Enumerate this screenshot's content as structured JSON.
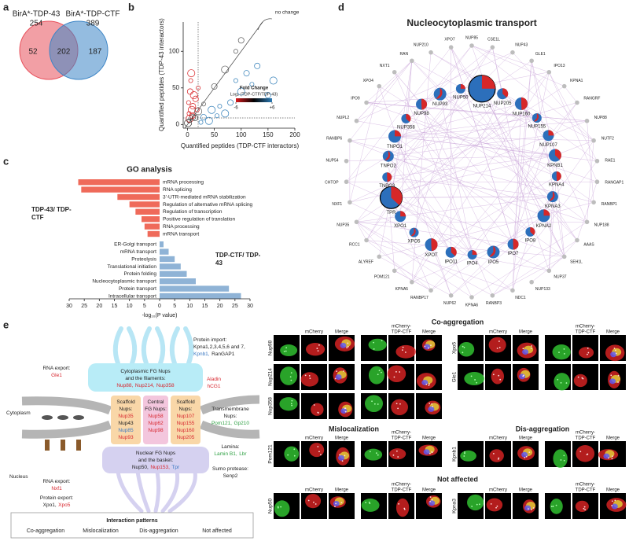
{
  "panel_labels": [
    "a",
    "b",
    "c",
    "d",
    "e"
  ],
  "venn": {
    "sets": [
      {
        "label": "BirA*-TDP-43",
        "total": 254,
        "color": "#e8505b"
      },
      {
        "label": "BirA*-TDP-CTF",
        "total": 389,
        "color": "#3d85c6"
      }
    ],
    "regions": [
      52,
      202,
      187
    ]
  },
  "chart_data": [
    {
      "type": "scatter",
      "x": [
        2,
        5,
        8,
        3,
        10,
        12,
        6,
        15,
        4,
        20,
        9,
        7,
        18,
        30,
        45,
        60,
        80,
        100,
        120,
        150,
        70,
        90,
        110,
        40,
        55,
        130,
        160,
        25,
        10,
        20,
        30,
        50,
        70,
        90,
        100,
        1,
        3,
        14
      ],
      "y": [
        30,
        45,
        20,
        15,
        25,
        40,
        60,
        35,
        8,
        50,
        12,
        70,
        20,
        10,
        20,
        25,
        30,
        45,
        55,
        40,
        15,
        60,
        70,
        5,
        12,
        80,
        60,
        3,
        10,
        18,
        28,
        52,
        75,
        100,
        115,
        2,
        5,
        9
      ],
      "colors": [
        "#d7191c",
        "#d7191c",
        "#d7191c",
        "#d7191c",
        "#d7191c",
        "#d7191c",
        "#d7191c",
        "#d7191c",
        "#d7191c",
        "#d7191c",
        "#d7191c",
        "#d7191c",
        "#d7191c",
        "#2c7bb6",
        "#2c7bb6",
        "#2c7bb6",
        "#2c7bb6",
        "#2c7bb6",
        "#2c7bb6",
        "#2c7bb6",
        "#2c7bb6",
        "#2c7bb6",
        "#2c7bb6",
        "#2c7bb6",
        "#2c7bb6",
        "#2c7bb6",
        "#2c7bb6",
        "#2c7bb6",
        "#555555",
        "#555555",
        "#555555",
        "#555555",
        "#555555",
        "#555555",
        "#555555",
        "#333333",
        "#333333",
        "#333333"
      ],
      "xlabel": "Quantified peptides (TDP-CTF interactors)",
      "ylabel": "Quantified peptides (TDP-43 interactors)",
      "xlim": [
        -8,
        200
      ],
      "ylim": [
        -5,
        140
      ],
      "xticks": [
        0,
        50,
        100,
        150,
        200
      ],
      "yticks": [
        0,
        50,
        100
      ],
      "annotation": "no change",
      "legend": {
        "title": "Fold Change",
        "subtitle": "Log₂ (TDP-CTF/TDP-43)",
        "range": [
          -6,
          {
            "value": 6,
            "label": "+6"
          }
        ],
        "colors": [
          "#d7191c",
          "#000000",
          "#2c7bb6"
        ]
      }
    },
    {
      "type": "bar",
      "orientation": "horizontal",
      "title": "GO analysis",
      "xlabel": "-log₁₀(P value)",
      "xlim": [
        -30,
        30
      ],
      "xticks": [
        {
          "value": -30,
          "label": "30"
        },
        {
          "value": -25,
          "label": "25"
        },
        {
          "value": -20,
          "label": "20"
        },
        {
          "value": -15,
          "label": "15"
        },
        {
          "value": -10,
          "label": "10"
        },
        {
          "value": -5,
          "label": "5"
        },
        0,
        5,
        10,
        15,
        20,
        25,
        30
      ],
      "series": [
        {
          "name": "TDP-43/ TDP-CTF",
          "color": "#ef6a5a",
          "direction": "left",
          "categories": [
            "mRNA processing",
            "RNA splicing",
            "3'-UTR-mediated mRNA stabilization",
            "Regulation of alternative mRNA splicing",
            "Regulation of transcription",
            "Positive regulation of translation",
            "RNA processing",
            "mRNA transport"
          ],
          "values": [
            27,
            26,
            14,
            10,
            8,
            6,
            5,
            4
          ]
        },
        {
          "name": "TDP-CTF/ TDP-43",
          "color": "#8fb3d6",
          "direction": "right",
          "categories": [
            "ER-Golgi transport",
            "mRNA transport",
            "Proteolysis",
            "Translational initiation",
            "Protein folding",
            "Nucleocytoplasmic transport",
            "Protein transport",
            "Intracellular transport"
          ],
          "values": [
            1.3,
            3,
            5,
            7,
            9,
            12,
            23,
            27
          ]
        }
      ]
    }
  ],
  "network": {
    "title": "Nucleocytoplasmic transport",
    "outer_nodes": [
      "NUP85",
      "CSE1L",
      "NUP43",
      "GLE1",
      "IPO13",
      "KPNA1",
      "RANGRF",
      "NUP88",
      "NUTF2",
      "RAE1",
      "RANGAP1",
      "RANBP1",
      "NUP188",
      "AAAS",
      "SEH1L",
      "NUP37",
      "NUP133",
      "NDC1",
      "RANBP3",
      "KPNA6",
      "NUP62",
      "RANBP17",
      "KPNA5",
      "POM121",
      "ALYREF",
      "RCC1",
      "NUP35",
      "NXF1",
      "CHTOP",
      "NUP54",
      "RANBP6",
      "NUPL2",
      "IPO9",
      "XPO4",
      "NXT1",
      "RAN",
      "NUP210",
      "XPO7"
    ],
    "inner_nodes": [
      "NUP214",
      "NUP205",
      "NUP160",
      "NUP155",
      "NUP107",
      "KPNB1",
      "KPNA4",
      "KPNA3",
      "KPNA2",
      "IPO8",
      "IPO7",
      "IPO5",
      "IPO4",
      "IPO11",
      "XPOT",
      "XPO5",
      "XPO1",
      "TPR",
      "TNPO3",
      "TNPO2",
      "TNPO1",
      "NUP358",
      "NUP98",
      "NUP93",
      "NUP50"
    ],
    "outer_color": "#bdbdbd",
    "pie_colors": [
      "#d62728",
      "#2c6fbb"
    ],
    "edge_color": "#c9a4d8"
  },
  "diagram": {
    "rna_export_top": [
      [
        {
          "text": "RNA export:",
          "color": "#222222"
        }
      ],
      [
        {
          "text": "Gle1",
          "color": "#d7262e"
        }
      ]
    ],
    "cytoplasmic": [
      [
        {
          "text": "Cytoplasmic FG Nups",
          "color": "#222222"
        }
      ],
      [
        {
          "text": "and the filaments:",
          "color": "#222222"
        }
      ],
      [
        {
          "text": "Nup88,",
          "color": "#d7262e"
        },
        {
          "text": "Nup214,",
          "color": "#d7262e"
        },
        {
          "text": "Nup358",
          "color": "#d7262e"
        }
      ]
    ],
    "aladin": [
      [
        {
          "text": "Aladin",
          "color": "#d7262e"
        }
      ],
      [
        {
          "text": "hCG1",
          "color": "#d7262e"
        }
      ]
    ],
    "protein_import": [
      [
        {
          "text": "Protein import:",
          "color": "#222222"
        }
      ],
      [
        {
          "text": "Kpna1,2,3,4,5,6 and 7,",
          "color": "#222222"
        }
      ],
      [
        {
          "text": "Kpnb1,",
          "color": "#3a78c2"
        },
        {
          "text": "RanGAP1",
          "color": "#222222"
        }
      ]
    ],
    "cytoplasm": [
      [
        {
          "text": "Cytoplasm",
          "color": "#222222"
        }
      ]
    ],
    "nucleus": [
      [
        {
          "text": "Nucleus",
          "color": "#222222"
        }
      ]
    ],
    "scaffold_left": [
      [
        {
          "text": "Scaffold",
          "color": "#222222"
        }
      ],
      [
        {
          "text": "Nups:",
          "color": "#222222"
        }
      ],
      [
        {
          "text": "Nup35",
          "color": "#d7262e"
        }
      ],
      [
        {
          "text": "Nup43",
          "color": "#222222"
        }
      ],
      [
        {
          "text": "Nup85",
          "color": "#3a78c2"
        }
      ],
      [
        {
          "text": "Nup93",
          "color": "#d7262e"
        }
      ]
    ],
    "central": [
      [
        {
          "text": "Central",
          "color": "#222222"
        }
      ],
      [
        {
          "text": "FG Nups:",
          "color": "#222222"
        }
      ],
      [
        {
          "text": "Nup58",
          "color": "#d7262e"
        }
      ],
      [
        {
          "text": "Nup62",
          "color": "#d7262e"
        }
      ],
      [
        {
          "text": "Nup98",
          "color": "#d7262e"
        }
      ]
    ],
    "scaffold_right": [
      [
        {
          "text": "Scaffold",
          "color": "#222222"
        }
      ],
      [
        {
          "text": "Nups:",
          "color": "#222222"
        }
      ],
      [
        {
          "text": "Nup107",
          "color": "#d7262e"
        }
      ],
      [
        {
          "text": "Nup155",
          "color": "#d7262e"
        }
      ],
      [
        {
          "text": "Nup160",
          "color": "#d7262e"
        }
      ],
      [
        {
          "text": "Nup205",
          "color": "#d7262e"
        }
      ]
    ],
    "transmembrane": [
      [
        {
          "text": "Transmembrane",
          "color": "#222222"
        }
      ],
      [
        {
          "text": "Nups:",
          "color": "#222222"
        }
      ],
      [
        {
          "text": "Pom121,",
          "color": "#2ea043"
        },
        {
          "text": "Gp210",
          "color": "#2ea043"
        }
      ]
    ],
    "nuclear": [
      [
        {
          "text": "Nuclear FG Nups",
          "color": "#222222"
        }
      ],
      [
        {
          "text": "and the basket:",
          "color": "#222222"
        }
      ],
      [
        {
          "text": "Nup50,",
          "color": "#222222"
        },
        {
          "text": "Nup153,",
          "color": "#d7262e"
        },
        {
          "text": "Tpr",
          "color": "#3a78c2"
        }
      ]
    ],
    "lamina": [
      [
        {
          "text": "Lamina:",
          "color": "#222222"
        }
      ],
      [
        {
          "text": "Lamin B1,",
          "color": "#2ea043"
        },
        {
          "text": "Lbr",
          "color": "#2ea043"
        }
      ]
    ],
    "sumo": [
      [
        {
          "text": "Sumo protease:",
          "color": "#222222"
        }
      ],
      [
        {
          "text": "Senp2",
          "color": "#222222"
        }
      ]
    ],
    "rna_export_bottom": [
      [
        {
          "text": "RNA export:",
          "color": "#222222"
        }
      ],
      [
        {
          "text": "Nxf1",
          "color": "#d7262e"
        }
      ]
    ],
    "protein_export": [
      [
        {
          "text": "Protein export:",
          "color": "#222222"
        }
      ],
      [
        {
          "text": "Xpo1,",
          "color": "#222222"
        },
        {
          "text": "Xpo5",
          "color": "#d7262e"
        }
      ]
    ],
    "legend": {
      "title": "Interaction patterns",
      "items": [
        {
          "text": "Co-aggregation",
          "color": "#d7262e"
        },
        {
          "text": "Mislocalization",
          "color": "#2ea043"
        },
        {
          "text": "Dis-aggregation",
          "color": "#3a78c2"
        },
        {
          "text": "Not affected",
          "color": "#222222"
        }
      ]
    }
  },
  "microscopy": {
    "headers": [
      [
        "mCherry"
      ],
      [
        "Merge"
      ],
      [
        "mCherry-",
        "TDP-CTF"
      ],
      [
        "Merge"
      ]
    ],
    "sections": [
      {
        "title": "Co-aggregation",
        "groups": [
          [
            "Nup98",
            "Nup214",
            "Nup358"
          ],
          [
            "Xpo5",
            "Gle1"
          ]
        ]
      },
      {
        "title": "Mislocalization",
        "groups": [
          [
            "Pom121"
          ]
        ]
      },
      {
        "title": "Dis-aggregation",
        "groups": [
          [
            "Kpnb1"
          ]
        ]
      },
      {
        "title": "Not affected",
        "groups": [
          [
            "Nup50"
          ],
          [
            "Kpna3"
          ]
        ]
      }
    ]
  }
}
